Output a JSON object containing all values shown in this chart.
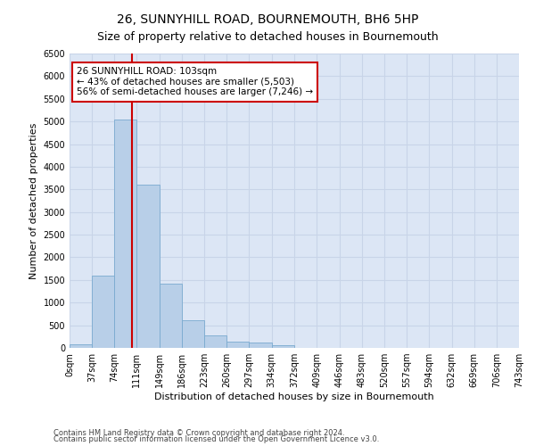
{
  "title": "26, SUNNYHILL ROAD, BOURNEMOUTH, BH6 5HP",
  "subtitle": "Size of property relative to detached houses in Bournemouth",
  "xlabel": "Distribution of detached houses by size in Bournemouth",
  "ylabel": "Number of detached properties",
  "footnote1": "Contains HM Land Registry data © Crown copyright and database right 2024.",
  "footnote2": "Contains public sector information licensed under the Open Government Licence v3.0.",
  "bar_edges": [
    0,
    37,
    74,
    111,
    149,
    186,
    223,
    260,
    297,
    334,
    372,
    409,
    446,
    483,
    520,
    557,
    594,
    632,
    669,
    706,
    743
  ],
  "bar_heights": [
    80,
    1600,
    5050,
    3600,
    1420,
    620,
    270,
    130,
    110,
    60,
    0,
    0,
    0,
    0,
    0,
    0,
    0,
    0,
    0,
    0
  ],
  "bar_color": "#b8cfe8",
  "bar_edge_color": "#7aaacf",
  "vline_x": 103,
  "vline_color": "#cc0000",
  "annotation_text": "26 SUNNYHILL ROAD: 103sqm\n← 43% of detached houses are smaller (5,503)\n56% of semi-detached houses are larger (7,246) →",
  "annotation_box_color": "#cc0000",
  "ylim": [
    0,
    6500
  ],
  "yticks": [
    0,
    500,
    1000,
    1500,
    2000,
    2500,
    3000,
    3500,
    4000,
    4500,
    5000,
    5500,
    6000,
    6500
  ],
  "grid_color": "#c8d4e8",
  "background_color": "#dce6f5",
  "title_fontsize": 10,
  "subtitle_fontsize": 9,
  "axis_label_fontsize": 8,
  "tick_fontsize": 7,
  "annotation_fontsize": 7.5
}
